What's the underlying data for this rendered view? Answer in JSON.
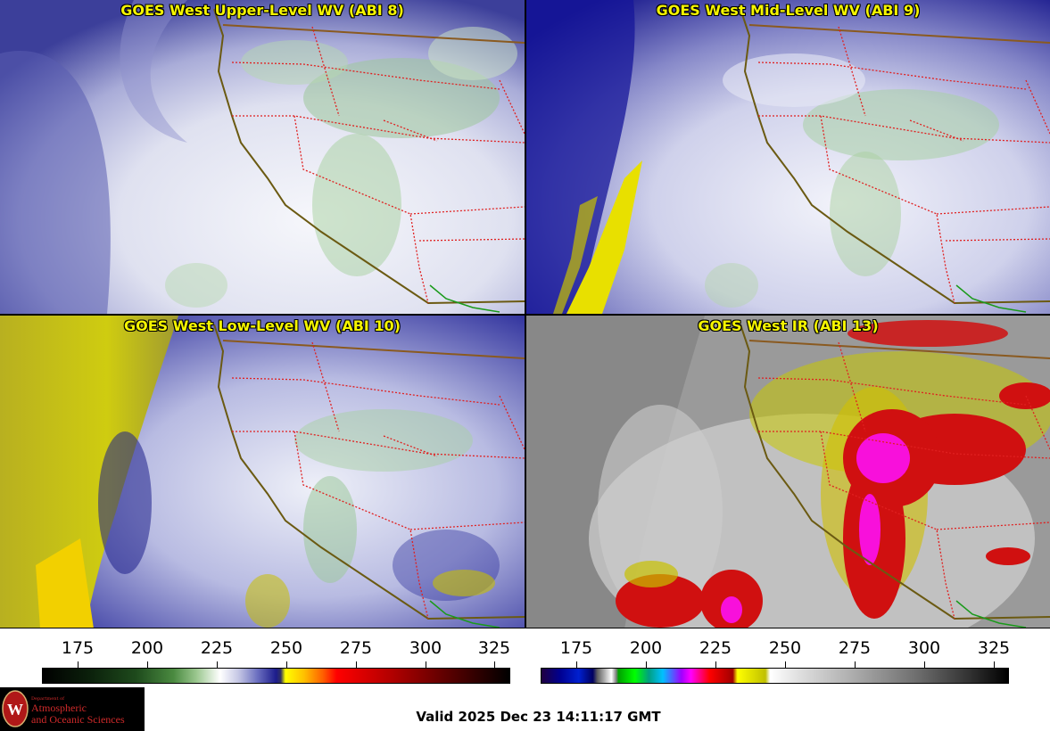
{
  "panels": [
    {
      "title": "GOES West Upper-Level WV (ABI 8)"
    },
    {
      "title": "GOES West Mid-Level WV (ABI 9)"
    },
    {
      "title": "GOES West Low-Level WV (ABI 10)"
    },
    {
      "title": "GOES West IR (ABI 13)"
    }
  ],
  "colorbars": {
    "left_ticks": [
      "175",
      "200",
      "225",
      "250",
      "275",
      "300",
      "325"
    ],
    "right_ticks": [
      "175",
      "200",
      "225",
      "250",
      "275",
      "300",
      "325"
    ]
  },
  "logo": {
    "dept": "Department of",
    "line1": "Atmospheric",
    "line2": "and Oceanic Sciences",
    "seal_letter": "W"
  },
  "valid_time": "Valid 2025 Dec 23 14:11:17 GMT",
  "colors": {
    "title_text": "#f5f500",
    "state_border": "#e02020",
    "coastline": "#6b5a12",
    "mexico_coast": "#1a9a1a"
  }
}
